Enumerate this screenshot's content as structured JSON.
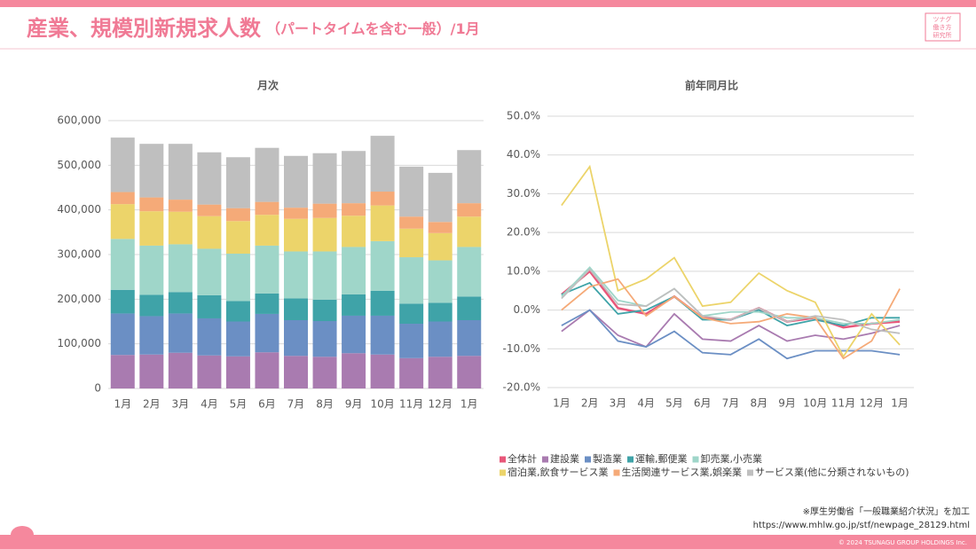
{
  "header": {
    "title": "産業、規模別新規求人数",
    "subtitle": "（パートタイムを含む一般）/1月",
    "logo": [
      "ツナグ",
      "働き方",
      "研究所"
    ]
  },
  "chart_data": [
    {
      "type": "stacked-bar",
      "title": "月次",
      "categories": [
        "1月",
        "2月",
        "3月",
        "4月",
        "5月",
        "6月",
        "7月",
        "8月",
        "9月",
        "10月",
        "11月",
        "12月",
        "1月"
      ],
      "series": [
        {
          "color": "#a97bb0",
          "values": [
            75000,
            76000,
            80000,
            74000,
            72000,
            81000,
            73000,
            71000,
            79000,
            76000,
            68000,
            71000,
            73000
          ]
        },
        {
          "color": "#6b8fc4",
          "values": [
            93000,
            86000,
            88000,
            83000,
            78000,
            86000,
            80000,
            80000,
            84000,
            87000,
            77000,
            79000,
            80000
          ]
        },
        {
          "color": "#3fa3a8",
          "values": [
            53000,
            48000,
            48000,
            52000,
            46000,
            46000,
            49000,
            48000,
            48000,
            56000,
            45000,
            42000,
            53000
          ]
        },
        {
          "color": "#9fd6c9",
          "values": [
            114000,
            110000,
            107000,
            104000,
            106000,
            107000,
            105000,
            108000,
            106000,
            111000,
            104000,
            95000,
            111000
          ]
        },
        {
          "color": "#ecd46a",
          "values": [
            78000,
            77000,
            73000,
            73000,
            73000,
            69000,
            73000,
            75000,
            70000,
            80000,
            64000,
            61000,
            68000
          ]
        },
        {
          "color": "#f5aa78",
          "values": [
            27000,
            31000,
            27000,
            26000,
            29000,
            29000,
            25000,
            32000,
            28000,
            31000,
            27000,
            25000,
            30000
          ]
        },
        {
          "color": "#bfbfbf",
          "values": [
            122000,
            120000,
            125000,
            117000,
            114000,
            121000,
            116000,
            113000,
            117000,
            125000,
            112000,
            110000,
            119000
          ]
        }
      ],
      "ylim": [
        0,
        600000
      ],
      "yticks": [
        0,
        {
          "value": 100000,
          "label": "100,000"
        },
        {
          "value": 200000,
          "label": "200,000"
        },
        {
          "value": 300000,
          "label": "300,000"
        },
        {
          "value": 400000,
          "label": "400,000"
        },
        {
          "value": 500000,
          "label": "500,000"
        },
        {
          "value": 600000,
          "label": "600,000"
        }
      ],
      "grid": true
    },
    {
      "type": "line",
      "title": "前年同月比",
      "categories": [
        "1月",
        "2月",
        "3月",
        "4月",
        "5月",
        "6月",
        "7月",
        "8月",
        "9月",
        "10月",
        "11月",
        "12月",
        "1月"
      ],
      "series": [
        {
          "name": "全体計",
          "color": "#e8577a",
          "values": [
            4,
            10,
            0.5,
            -1,
            3.5,
            -2,
            -2.5,
            0.5,
            -3,
            -2,
            -4.5,
            -3.5,
            -3
          ]
        },
        {
          "name": "建設業",
          "color": "#a97bb0",
          "values": [
            -5.5,
            0,
            -6.5,
            -9.5,
            -1,
            -7.5,
            -8,
            -4,
            -8,
            -6.5,
            -7.5,
            -6,
            -4
          ]
        },
        {
          "name": "製造業",
          "color": "#6b8fc4",
          "values": [
            -4,
            0,
            -8,
            -9.5,
            -5.5,
            -11,
            -11.5,
            -7.5,
            -12.5,
            -10.5,
            -10.5,
            -10.5,
            -11.5
          ]
        },
        {
          "name": "運輸,郵便業",
          "color": "#3fa3a8",
          "values": [
            4,
            7,
            -1,
            0,
            3.5,
            -2.5,
            -2.5,
            0,
            -4,
            -2.5,
            -4,
            -2,
            -2
          ]
        },
        {
          "name": "卸売業,小売業",
          "color": "#9fd6c9",
          "values": [
            3.5,
            11,
            2.5,
            1,
            5.5,
            -1.5,
            -0.5,
            -0.5,
            -2,
            -2,
            -3.5,
            -3.5,
            -2.5
          ]
        },
        {
          "name": "宿泊業,飲食サービス業",
          "color": "#ecd46a",
          "values": [
            27,
            37,
            5,
            8,
            13.5,
            1,
            2,
            9.5,
            5,
            2,
            -12,
            -1,
            -9
          ]
        },
        {
          "name": "生活関連サービス業,娯楽業",
          "color": "#f5aa78",
          "values": [
            0,
            6,
            8,
            -1.5,
            3.5,
            -2,
            -3.5,
            -3,
            -1,
            -2,
            -12.5,
            -8,
            5.5
          ]
        },
        {
          "name": "サービス業(他に分類されないもの)",
          "color": "#bfbfbf",
          "values": [
            3,
            10.5,
            1.5,
            1,
            5.5,
            -1.5,
            -2.5,
            0.5,
            -3,
            -1.5,
            -2.5,
            -5,
            -6
          ]
        }
      ],
      "ylim": [
        -20,
        50
      ],
      "yticks": [
        {
          "value": -20,
          "label": "-20.0%"
        },
        {
          "value": -10,
          "label": "-10.0%"
        },
        {
          "value": 0,
          "label": "0.0%"
        },
        {
          "value": 10,
          "label": "10.0%"
        },
        {
          "value": 20,
          "label": "20.0%"
        },
        {
          "value": 30,
          "label": "30.0%"
        },
        {
          "value": 40,
          "label": "40.0%"
        },
        {
          "value": 50,
          "label": "50.0%"
        }
      ],
      "grid": true
    }
  ],
  "footer": {
    "source": "※厚生労働省「一般職業紹介状況」を加工",
    "url": "https://www.mhlw.go.jp/stf/newpage_28129.html",
    "copyright": "© 2024 TSUNAGU GROUP HOLDINGS Inc."
  }
}
